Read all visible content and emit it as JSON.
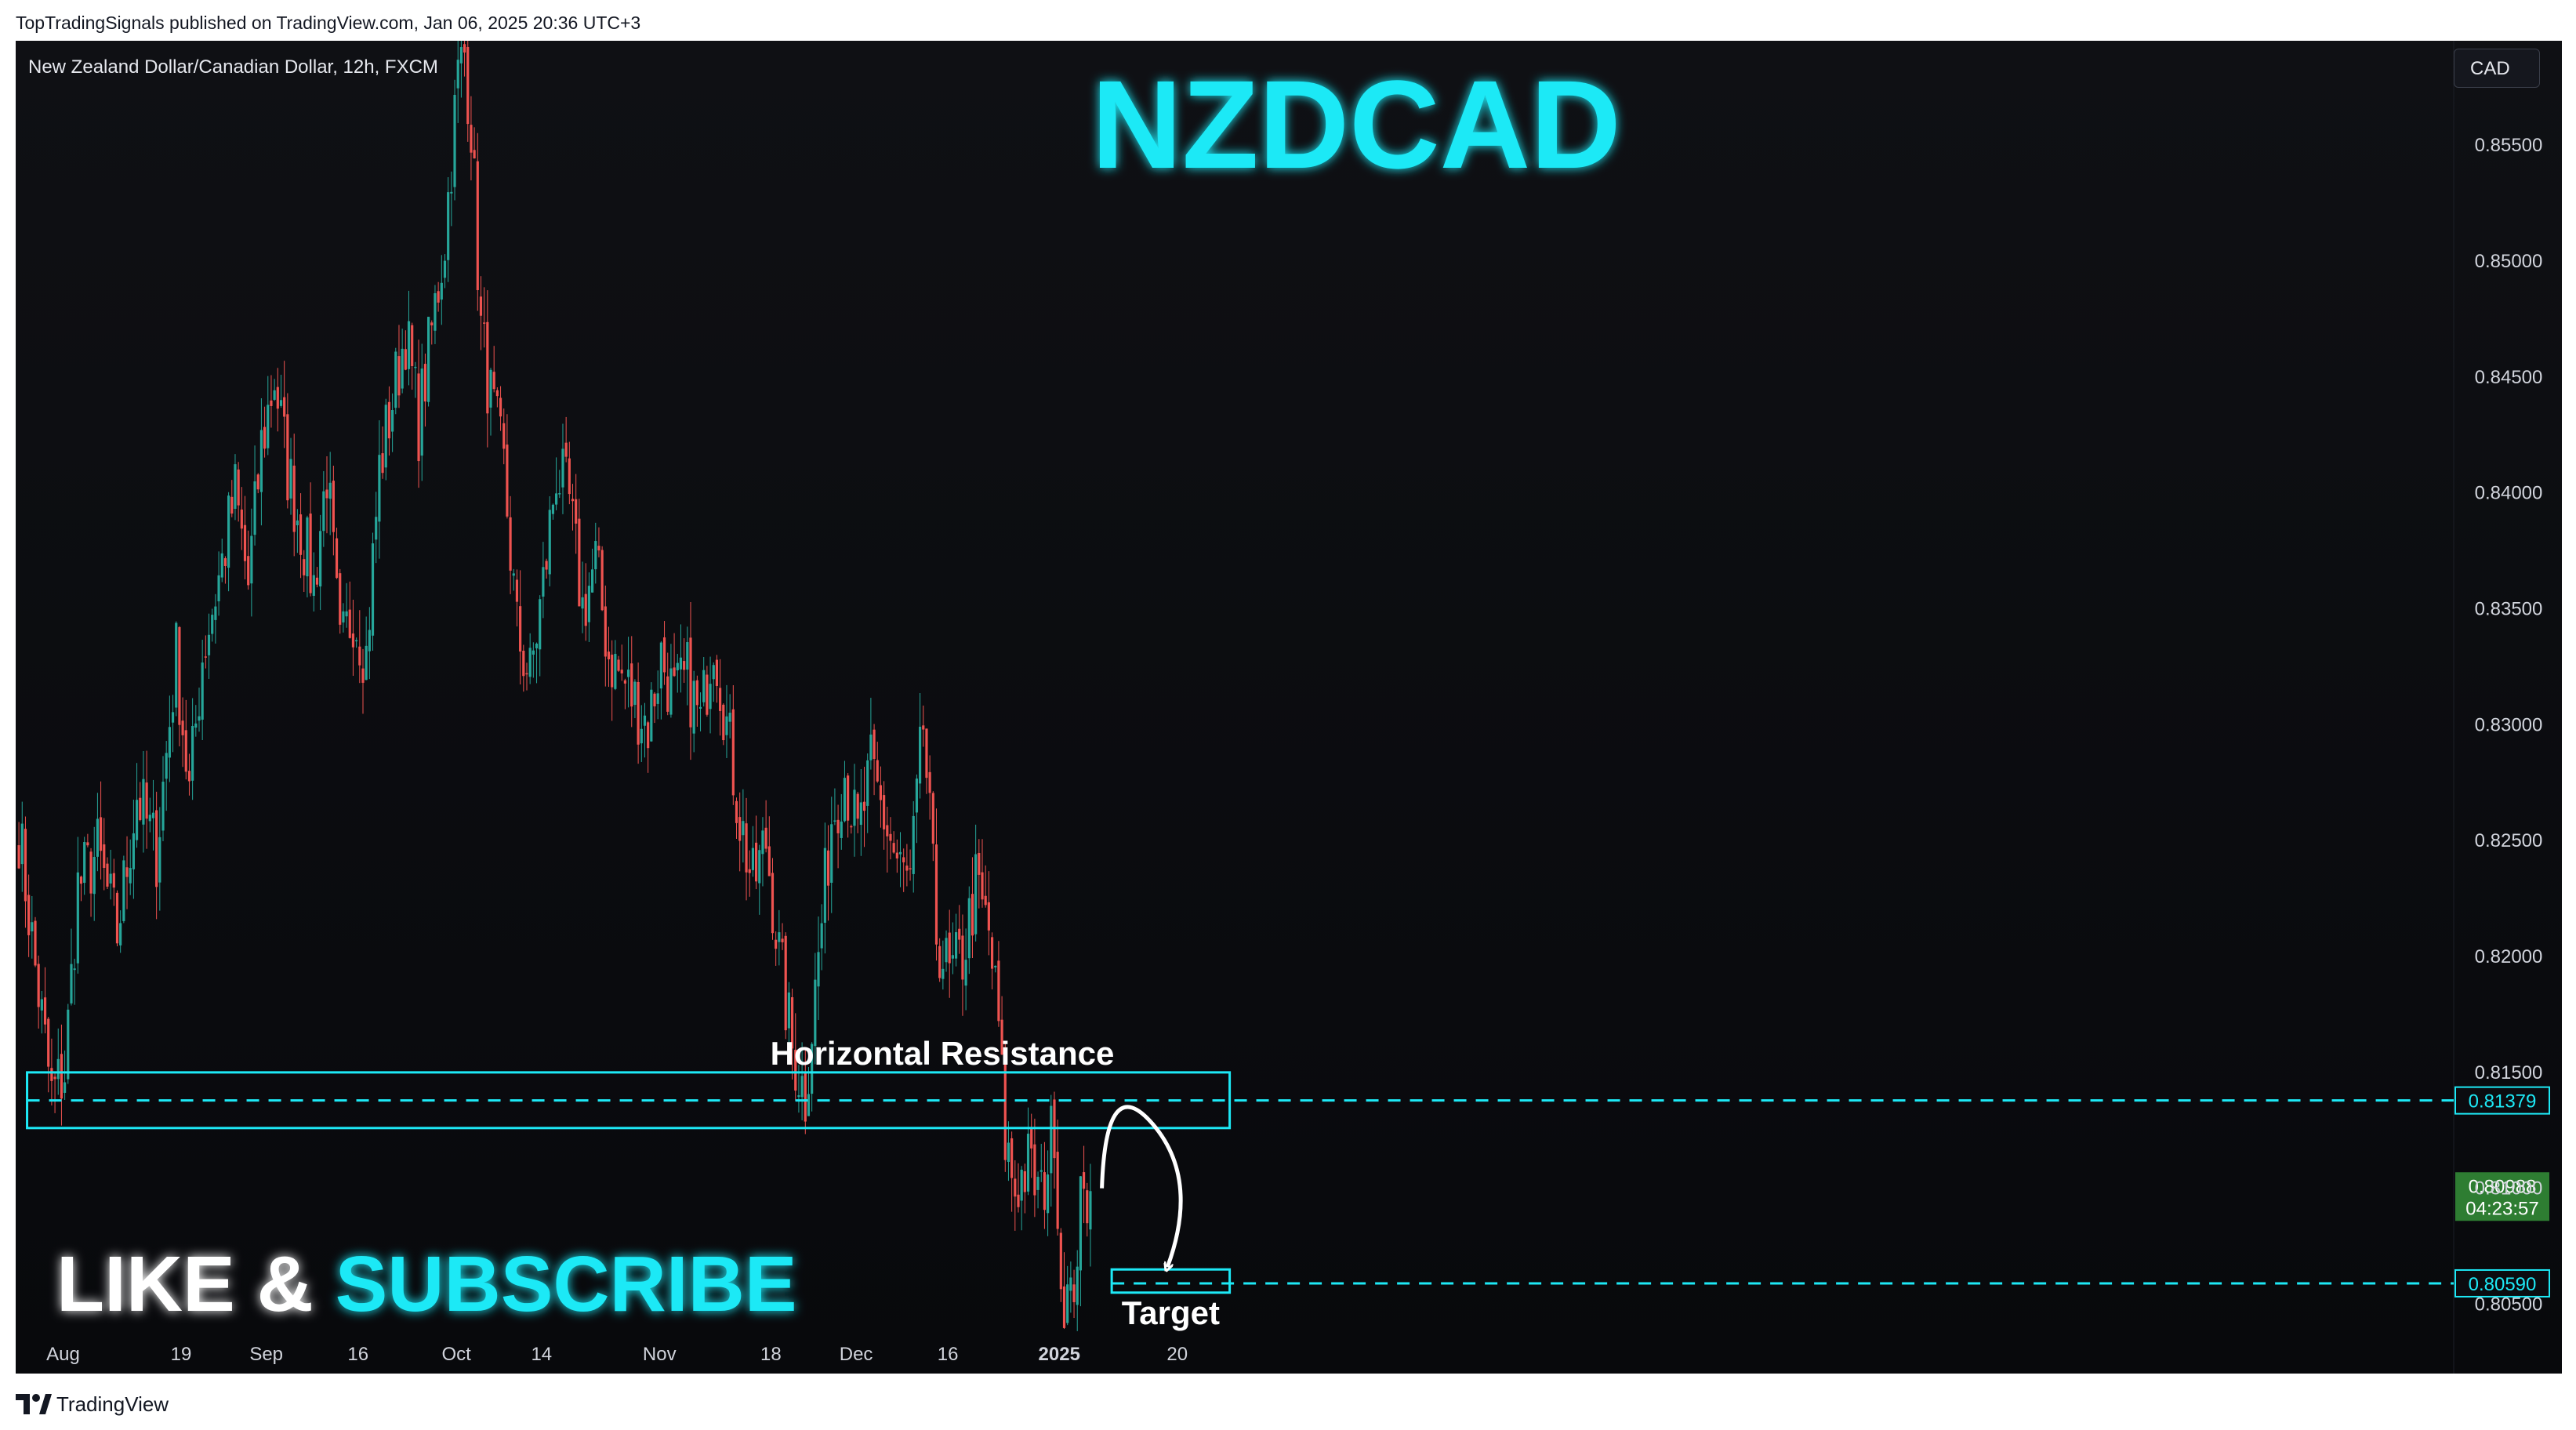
{
  "header": {
    "published_line": "TopTradingSignals published on TradingView.com, Jan 06, 2025 20:36 UTC+3"
  },
  "chart_header": {
    "symbol_label": "New Zealand Dollar/Canadian Dollar, 12h, FXCM",
    "currency_button": "CAD"
  },
  "footer": {
    "logo_text": "TradingView"
  },
  "colors": {
    "background": "#0b0c10",
    "bull": "#26a69a",
    "bear": "#ef5350",
    "accent_cyan": "#1de9f6",
    "axis_text": "#d1d4dc"
  },
  "chart_data": {
    "type": "candlestick",
    "title": "NZDCAD",
    "interval": "12h",
    "ylim": [
      0.8037,
      0.8595
    ],
    "y_ticks": [
      0.805,
      0.81,
      0.815,
      0.82,
      0.825,
      0.83,
      0.835,
      0.84,
      0.845,
      0.85,
      0.855
    ],
    "y_tick_labels": [
      "0.80500",
      "0.81000",
      "0.81500",
      "0.82000",
      "0.82500",
      "0.83000",
      "0.83500",
      "0.84000",
      "0.84500",
      "0.85000",
      "0.85500"
    ],
    "x_ticks": [
      {
        "label": "Aug",
        "bar": 14
      },
      {
        "label": "19",
        "bar": 50
      },
      {
        "label": "Sep",
        "bar": 76
      },
      {
        "label": "16",
        "bar": 104
      },
      {
        "label": "Oct",
        "bar": 134
      },
      {
        "label": "14",
        "bar": 160
      },
      {
        "label": "Nov",
        "bar": 196
      },
      {
        "label": "18",
        "bar": 230
      },
      {
        "label": "Dec",
        "bar": 256
      },
      {
        "label": "16",
        "bar": 284
      },
      {
        "label": "2025",
        "bar": 318
      },
      {
        "label": "20",
        "bar": 354
      }
    ],
    "price_path": [
      [
        0,
        0.8255
      ],
      [
        5,
        0.8195
      ],
      [
        10,
        0.814
      ],
      [
        14,
        0.815
      ],
      [
        18,
        0.823
      ],
      [
        24,
        0.8245
      ],
      [
        30,
        0.821
      ],
      [
        36,
        0.827
      ],
      [
        42,
        0.8245
      ],
      [
        48,
        0.833
      ],
      [
        52,
        0.827
      ],
      [
        56,
        0.833
      ],
      [
        62,
        0.837
      ],
      [
        66,
        0.84
      ],
      [
        70,
        0.836
      ],
      [
        74,
        0.842
      ],
      [
        78,
        0.845
      ],
      [
        82,
        0.841
      ],
      [
        86,
        0.8385
      ],
      [
        90,
        0.836
      ],
      [
        94,
        0.841
      ],
      [
        98,
        0.833
      ],
      [
        102,
        0.835
      ],
      [
        106,
        0.833
      ],
      [
        110,
        0.841
      ],
      [
        114,
        0.844
      ],
      [
        118,
        0.847
      ],
      [
        122,
        0.843
      ],
      [
        126,
        0.847
      ],
      [
        130,
        0.851
      ],
      [
        134,
        0.858
      ],
      [
        136,
        0.859
      ],
      [
        138,
        0.856
      ],
      [
        141,
        0.847
      ],
      [
        144,
        0.844
      ],
      [
        148,
        0.841
      ],
      [
        152,
        0.834
      ],
      [
        156,
        0.832
      ],
      [
        160,
        0.836
      ],
      [
        164,
        0.841
      ],
      [
        168,
        0.8395
      ],
      [
        172,
        0.835
      ],
      [
        176,
        0.837
      ],
      [
        180,
        0.833
      ],
      [
        184,
        0.832
      ],
      [
        188,
        0.831
      ],
      [
        192,
        0.83
      ],
      [
        196,
        0.833
      ],
      [
        200,
        0.831
      ],
      [
        204,
        0.832
      ],
      [
        208,
        0.83
      ],
      [
        212,
        0.834
      ],
      [
        216,
        0.83
      ],
      [
        220,
        0.826
      ],
      [
        224,
        0.823
      ],
      [
        228,
        0.825
      ],
      [
        232,
        0.82
      ],
      [
        236,
        0.816
      ],
      [
        240,
        0.814
      ],
      [
        244,
        0.82
      ],
      [
        248,
        0.826
      ],
      [
        252,
        0.828
      ],
      [
        256,
        0.825
      ],
      [
        260,
        0.828
      ],
      [
        264,
        0.826
      ],
      [
        268,
        0.824
      ],
      [
        272,
        0.823
      ],
      [
        276,
        0.83
      ],
      [
        280,
        0.821
      ],
      [
        284,
        0.819
      ],
      [
        288,
        0.82
      ],
      [
        292,
        0.823
      ],
      [
        296,
        0.821
      ],
      [
        299,
        0.817
      ],
      [
        301,
        0.812
      ],
      [
        304,
        0.81
      ],
      [
        308,
        0.811
      ],
      [
        312,
        0.8095
      ],
      [
        316,
        0.813
      ],
      [
        318,
        0.806
      ],
      [
        321,
        0.8048
      ],
      [
        324,
        0.809
      ],
      [
        327,
        0.8099
      ]
    ],
    "last_price": 0.80988,
    "last_price_label": "0.80988",
    "countdown_label": "04:23:57",
    "resistance": {
      "label": "Horizontal Resistance",
      "level": 0.81379,
      "level_label": "0.81379",
      "zone": [
        0.8126,
        0.815
      ],
      "from_bar": 3,
      "to_bar": 370
    },
    "target": {
      "label": "Target",
      "level": 0.8059,
      "level_label": "0.80590",
      "zone": [
        0.8055,
        0.8065
      ],
      "from_bar": 334,
      "to_bar": 370
    },
    "forecast_arrow": {
      "start": [
        331,
        0.81
      ],
      "peak": [
        337,
        0.8131
      ],
      "end": [
        351,
        0.8066
      ]
    },
    "annotations": {
      "like_subscribe_white": "LIKE & ",
      "like_subscribe_cyan": "SUBSCRIBE"
    }
  }
}
